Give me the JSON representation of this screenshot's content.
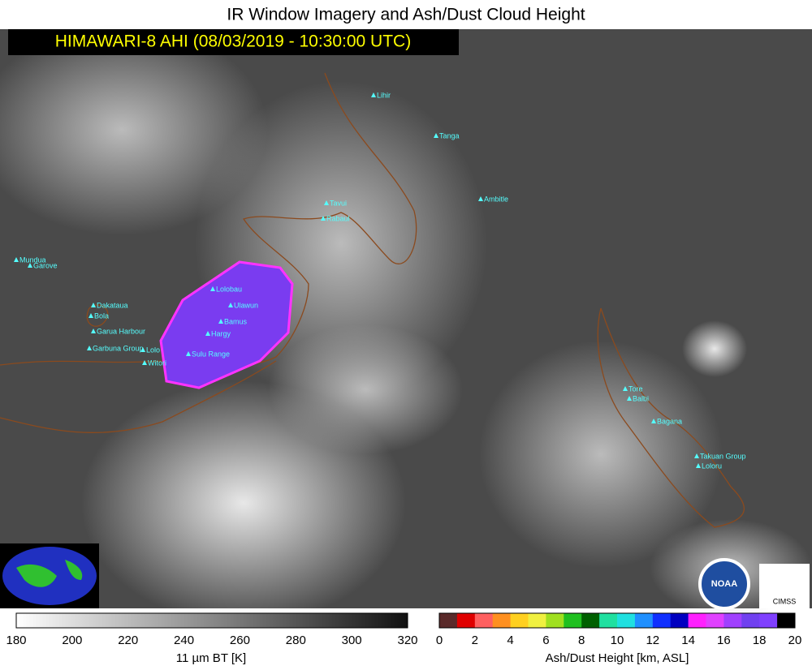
{
  "header": {
    "title": "IR Window Imagery and Ash/Dust Cloud Height",
    "subtitle": "HIMAWARI-8 AHI (08/03/2019 - 10:30:00 UTC)"
  },
  "volcanoes": [
    "Lihir",
    "Tanga",
    "Ambitle",
    "Tavui",
    "Rabaul",
    "Mundua",
    "Garove",
    "Dakataua",
    "Bola",
    "Garua Harbour",
    "Garbuna Group",
    "Lolo",
    "Witori",
    "Lolobau",
    "Ulawun",
    "Bamus",
    "Hargy",
    "Sulu Range",
    "Tore",
    "Balbi",
    "Bagana",
    "Takuan Group",
    "Loloru"
  ],
  "logos": [
    "NOAA",
    "CIMSS"
  ],
  "bt_colorbar": {
    "ticks": [
      180,
      200,
      220,
      240,
      260,
      280,
      300,
      320
    ],
    "label": "11 µm BT [K]"
  },
  "ash_colorbar": {
    "ticks": [
      0,
      2,
      4,
      6,
      8,
      10,
      12,
      14,
      16,
      18,
      20
    ],
    "label": "Ash/Dust Height [km, ASL]"
  }
}
